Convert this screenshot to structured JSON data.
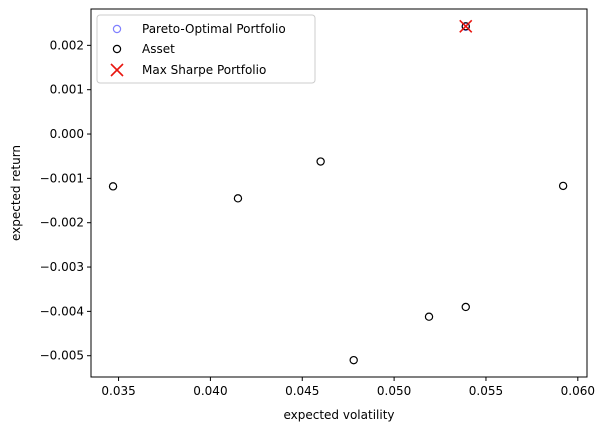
{
  "chart_data": {
    "type": "scatter",
    "xlabel": "expected volatility",
    "ylabel": "expected return",
    "xlim": [
      0.0335,
      0.0605
    ],
    "ylim": [
      -0.00548,
      0.00282
    ],
    "xticks": [
      0.035,
      0.04,
      0.045,
      0.05,
      0.055,
      0.06
    ],
    "xtick_labels": [
      "0.035",
      "0.040",
      "0.045",
      "0.050",
      "0.055",
      "0.060"
    ],
    "yticks": [
      -0.005,
      -0.004,
      -0.003,
      -0.002,
      -0.001,
      0.0,
      0.001,
      0.002
    ],
    "ytick_labels": [
      "−0.005",
      "−0.004",
      "−0.003",
      "−0.002",
      "−0.001",
      "0.000",
      "0.001",
      "0.002"
    ],
    "grid": false,
    "legend_position": "top-left",
    "series": [
      {
        "name": "Pareto-Optimal Portfolio",
        "marker": "open-circle",
        "color": "#8080ff",
        "x": [
          0.0539
        ],
        "y": [
          0.00242
        ]
      },
      {
        "name": "Asset",
        "marker": "open-circle",
        "color": "#000000",
        "x": [
          0.0347,
          0.0415,
          0.046,
          0.0478,
          0.0519,
          0.0539,
          0.0539,
          0.0592
        ],
        "y": [
          -0.00118,
          -0.00145,
          -0.00062,
          -0.0051,
          -0.00412,
          -0.0039,
          0.00243,
          -0.00117
        ]
      },
      {
        "name": "Max Sharpe Portfolio",
        "marker": "x",
        "color": "#e8150e",
        "x": [
          0.0539
        ],
        "y": [
          0.00243
        ]
      }
    ]
  }
}
